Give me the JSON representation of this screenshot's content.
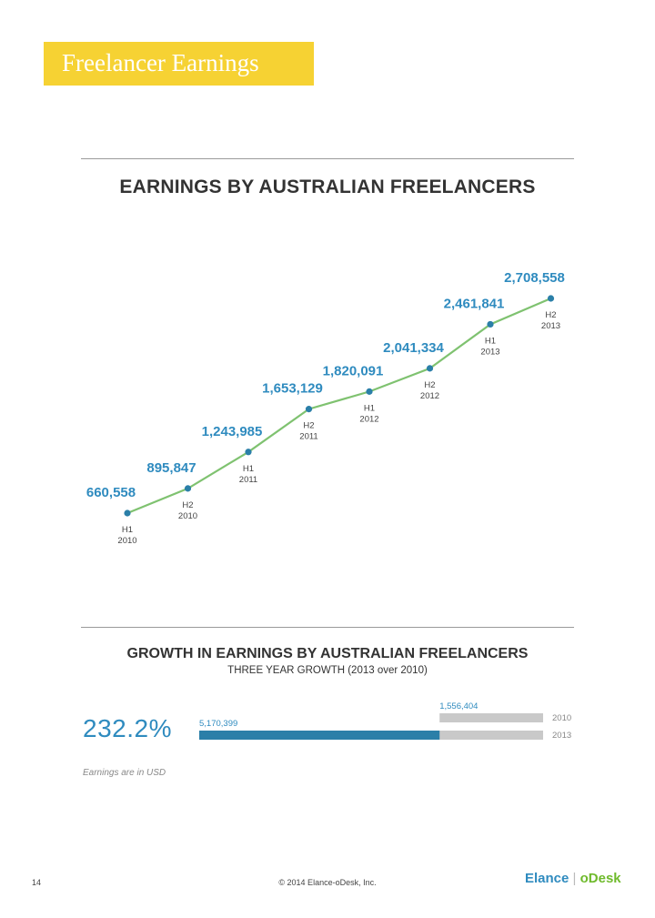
{
  "header": {
    "title": "Freelancer Earnings"
  },
  "chart_data": [
    {
      "type": "line",
      "title": "EARNINGS BY AUSTRALIAN FREELANCERS",
      "categories": [
        "H1\n2010",
        "H2\n2010",
        "H1\n2011",
        "H2\n2011",
        "H1\n2012",
        "H2\n2012",
        "H1\n2013",
        "H2\n2013"
      ],
      "series": [
        {
          "values": [
            660558,
            895847,
            1243985,
            1653129,
            1820091,
            2041334,
            2461841,
            2708558
          ]
        }
      ],
      "value_labels": [
        "660,558",
        "895,847",
        "1,243,985",
        "1,653,129",
        "1,820,091",
        "2,041,334",
        "2,461,841",
        "2,708,558"
      ],
      "line_color": "#7fc270",
      "point_color": "#2b7fa8",
      "label_color": "#2f8bbf"
    },
    {
      "type": "bar",
      "title": "GROWTH IN EARNINGS BY AUSTRALIAN FREELANCERS",
      "subtitle": "THREE YEAR GROWTH (2013 over 2010)",
      "categories": [
        "2010",
        "2013"
      ],
      "values": [
        1556404,
        5170399
      ],
      "value_labels": [
        "1,556,404",
        "5,170,399"
      ],
      "growth": "232.2%",
      "bar_colors": {
        "2013": "#2b7fa8",
        "track": "#c9c9c9"
      }
    }
  ],
  "note": "Earnings are in USD",
  "footer": {
    "page_number": "14",
    "copyright": "© 2014 Elance-oDesk, Inc.",
    "logo_left": "Elance",
    "logo_right": "oDesk"
  }
}
